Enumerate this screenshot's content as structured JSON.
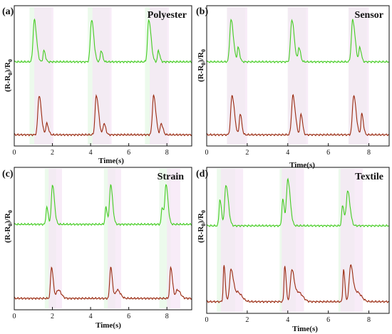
{
  "chart_data": [
    {
      "type": "line",
      "panel": "(a)",
      "title": "Polyester",
      "xlabel": "Time(s)",
      "ylabel": "(R-R0)/R0",
      "xlim": [
        0,
        9.3
      ],
      "xticks": [
        0,
        2,
        4,
        6,
        8
      ],
      "grid": false,
      "series": [
        {
          "color": "#44cc22",
          "offset": 0.6,
          "peaks": [
            [
              1.05,
              0.3,
              0.09
            ],
            [
              1.55,
              0.08,
              0.06
            ],
            [
              4.05,
              0.3,
              0.09
            ],
            [
              4.55,
              0.08,
              0.06
            ],
            [
              7.05,
              0.3,
              0.09
            ],
            [
              7.55,
              0.08,
              0.06
            ]
          ]
        },
        {
          "color": "#9a2a10",
          "offset": 0.08,
          "peaks": [
            [
              1.3,
              0.28,
              0.09
            ],
            [
              1.7,
              0.08,
              0.07
            ],
            [
              4.3,
              0.28,
              0.09
            ],
            [
              4.7,
              0.08,
              0.07
            ],
            [
              7.3,
              0.28,
              0.09
            ],
            [
              7.7,
              0.08,
              0.07
            ]
          ]
        }
      ],
      "annotation_bands": [
        [
          0.8,
          1.95,
          "#e6f8e6"
        ],
        [
          3.85,
          5.0,
          "#e6f8e6"
        ],
        [
          6.85,
          8.0,
          "#e6f8e6"
        ],
        [
          1.05,
          2.05,
          "#f6e6f6"
        ],
        [
          4.1,
          5.1,
          "#f6e6f6"
        ],
        [
          7.1,
          8.1,
          "#f6e6f6"
        ]
      ]
    },
    {
      "type": "line",
      "panel": "(b)",
      "title": "Sensor",
      "xlabel": "Time(s)",
      "ylabel": "(R-R0)/R0",
      "xlim": [
        0,
        9.0
      ],
      "xticks": [
        0,
        2,
        4,
        6,
        8
      ],
      "grid": false,
      "series": [
        {
          "color": "#44cc22",
          "offset": 0.6,
          "peaks": [
            [
              1.2,
              0.3,
              0.09
            ],
            [
              1.55,
              0.1,
              0.06
            ],
            [
              4.2,
              0.3,
              0.09
            ],
            [
              4.55,
              0.1,
              0.06
            ],
            [
              7.2,
              0.3,
              0.09
            ],
            [
              7.55,
              0.1,
              0.06
            ]
          ]
        },
        {
          "color": "#9a2a10",
          "offset": 0.08,
          "peaks": [
            [
              1.25,
              0.28,
              0.09
            ],
            [
              1.65,
              0.15,
              0.06
            ],
            [
              4.25,
              0.28,
              0.09
            ],
            [
              4.65,
              0.15,
              0.06
            ],
            [
              7.25,
              0.28,
              0.09
            ],
            [
              7.65,
              0.15,
              0.06
            ]
          ]
        }
      ],
      "annotation_bands": [
        [
          1.0,
          1.9,
          "#e6f8e6"
        ],
        [
          4.0,
          4.9,
          "#e6f8e6"
        ],
        [
          7.0,
          7.9,
          "#e6f8e6"
        ],
        [
          1.0,
          2.0,
          "#f6e6f6"
        ],
        [
          4.0,
          5.0,
          "#f6e6f6"
        ],
        [
          7.0,
          8.0,
          "#f6e6f6"
        ]
      ]
    },
    {
      "type": "line",
      "panel": "(c)",
      "title": "Strain",
      "xlabel": "Time(s)",
      "ylabel": "(R-R0)/R0",
      "xlim": [
        0,
        9.3
      ],
      "xticks": [
        0,
        2,
        4,
        6,
        8
      ],
      "grid": false,
      "series": [
        {
          "color": "#44cc22",
          "offset": 0.6,
          "peaks": [
            [
              1.7,
              0.12,
              0.06
            ],
            [
              2.0,
              0.28,
              0.08
            ],
            [
              4.8,
              0.12,
              0.06
            ],
            [
              5.05,
              0.28,
              0.08
            ],
            [
              7.75,
              0.12,
              0.06
            ],
            [
              7.95,
              0.28,
              0.08
            ]
          ]
        },
        {
          "color": "#9a2a10",
          "offset": 0.08,
          "peaks": [
            [
              1.95,
              0.22,
              0.07
            ],
            [
              2.3,
              0.06,
              0.12
            ],
            [
              5.05,
              0.22,
              0.07
            ],
            [
              5.4,
              0.06,
              0.12
            ],
            [
              8.2,
              0.22,
              0.07
            ],
            [
              8.55,
              0.06,
              0.12
            ]
          ]
        }
      ],
      "annotation_bands": [
        [
          1.6,
          2.2,
          "#e6f8e6"
        ],
        [
          4.7,
          5.3,
          "#e6f8e6"
        ],
        [
          7.6,
          8.2,
          "#e6f8e6"
        ],
        [
          1.8,
          2.5,
          "#f6e6f6"
        ],
        [
          4.9,
          5.6,
          "#f6e6f6"
        ],
        [
          8.0,
          8.7,
          "#f6e6f6"
        ]
      ]
    },
    {
      "type": "line",
      "panel": "(d)",
      "title": "Textile",
      "xlabel": "Time(s)",
      "ylabel": "(R-R0)/R0",
      "xlim": [
        0,
        9.0
      ],
      "xticks": [
        0,
        2,
        4,
        6,
        8
      ],
      "grid": false,
      "series": [
        {
          "color": "#44cc22",
          "offset": 0.6,
          "peaks": [
            [
              0.65,
              0.18,
              0.06
            ],
            [
              0.95,
              0.28,
              0.09
            ],
            [
              3.75,
              0.18,
              0.06
            ],
            [
              4.0,
              0.32,
              0.09
            ],
            [
              6.7,
              0.14,
              0.06
            ],
            [
              6.95,
              0.24,
              0.09
            ]
          ]
        },
        {
          "color": "#9a2a10",
          "offset": 0.08,
          "peaks": [
            [
              0.85,
              0.25,
              0.05
            ],
            [
              1.2,
              0.22,
              0.1
            ],
            [
              1.55,
              0.06,
              0.15
            ],
            [
              3.85,
              0.25,
              0.05
            ],
            [
              4.2,
              0.22,
              0.1
            ],
            [
              4.55,
              0.06,
              0.15
            ],
            [
              6.75,
              0.22,
              0.05
            ],
            [
              7.1,
              0.25,
              0.1
            ],
            [
              7.45,
              0.06,
              0.15
            ]
          ]
        }
      ],
      "annotation_bands": [
        [
          0.5,
          1.4,
          "#e6f8e6"
        ],
        [
          3.6,
          4.4,
          "#e6f8e6"
        ],
        [
          6.5,
          7.3,
          "#e6f8e6"
        ],
        [
          0.7,
          1.8,
          "#f6e6f6"
        ],
        [
          3.7,
          4.8,
          "#f6e6f6"
        ],
        [
          6.6,
          7.7,
          "#f6e6f6"
        ]
      ]
    }
  ]
}
